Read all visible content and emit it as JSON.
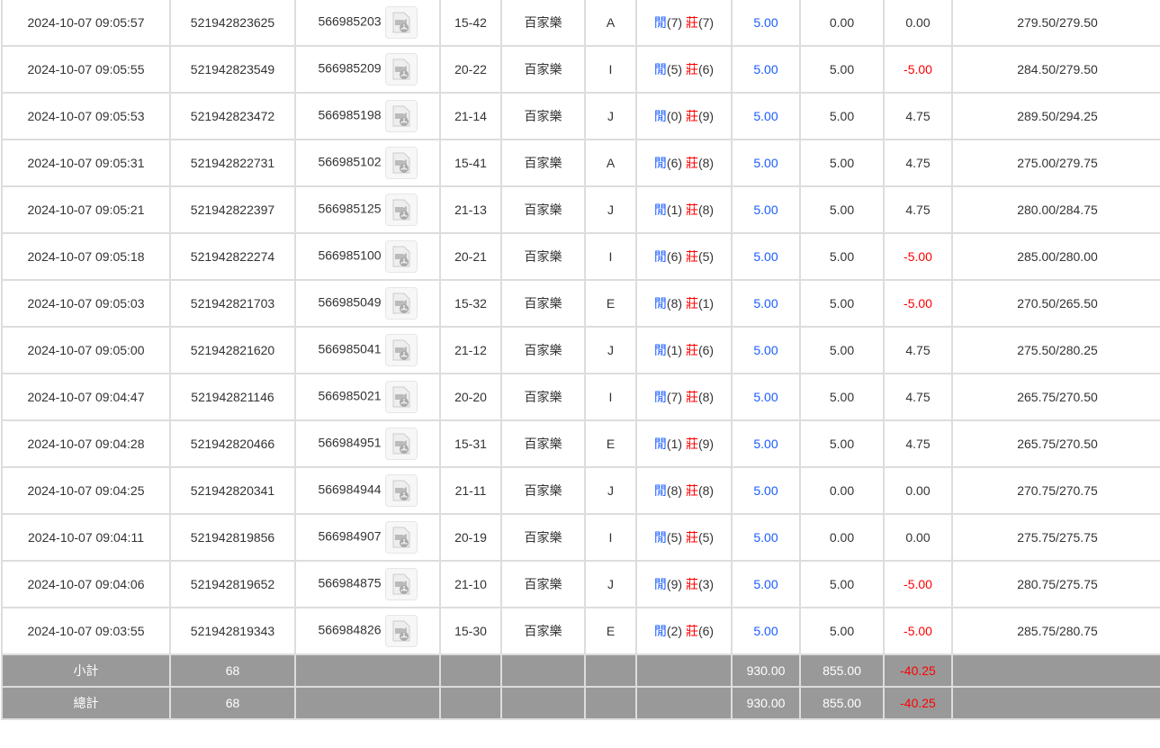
{
  "rows": [
    {
      "time": "2024-10-07 09:05:57",
      "bet_id": "521942823625",
      "round": "566985203",
      "table": "15-42",
      "game": "百家樂",
      "seat": "A",
      "player": "閒",
      "player_pts": "(7)",
      "banker": "莊",
      "banker_pts": "(7)",
      "bet": "5.00",
      "valid": "0.00",
      "win": "0.00",
      "balance": "279.50/279.50"
    },
    {
      "time": "2024-10-07 09:05:55",
      "bet_id": "521942823549",
      "round": "566985209",
      "table": "20-22",
      "game": "百家樂",
      "seat": "I",
      "player": "閒",
      "player_pts": "(5)",
      "banker": "莊",
      "banker_pts": "(6)",
      "bet": "5.00",
      "valid": "5.00",
      "win": "-5.00",
      "balance": "284.50/279.50"
    },
    {
      "time": "2024-10-07 09:05:53",
      "bet_id": "521942823472",
      "round": "566985198",
      "table": "21-14",
      "game": "百家樂",
      "seat": "J",
      "player": "閒",
      "player_pts": "(0)",
      "banker": "莊",
      "banker_pts": "(9)",
      "bet": "5.00",
      "valid": "5.00",
      "win": "4.75",
      "balance": "289.50/294.25"
    },
    {
      "time": "2024-10-07 09:05:31",
      "bet_id": "521942822731",
      "round": "566985102",
      "table": "15-41",
      "game": "百家樂",
      "seat": "A",
      "player": "閒",
      "player_pts": "(6)",
      "banker": "莊",
      "banker_pts": "(8)",
      "bet": "5.00",
      "valid": "5.00",
      "win": "4.75",
      "balance": "275.00/279.75"
    },
    {
      "time": "2024-10-07 09:05:21",
      "bet_id": "521942822397",
      "round": "566985125",
      "table": "21-13",
      "game": "百家樂",
      "seat": "J",
      "player": "閒",
      "player_pts": "(1)",
      "banker": "莊",
      "banker_pts": "(8)",
      "bet": "5.00",
      "valid": "5.00",
      "win": "4.75",
      "balance": "280.00/284.75"
    },
    {
      "time": "2024-10-07 09:05:18",
      "bet_id": "521942822274",
      "round": "566985100",
      "table": "20-21",
      "game": "百家樂",
      "seat": "I",
      "player": "閒",
      "player_pts": "(6)",
      "banker": "莊",
      "banker_pts": "(5)",
      "bet": "5.00",
      "valid": "5.00",
      "win": "-5.00",
      "balance": "285.00/280.00"
    },
    {
      "time": "2024-10-07 09:05:03",
      "bet_id": "521942821703",
      "round": "566985049",
      "table": "15-32",
      "game": "百家樂",
      "seat": "E",
      "player": "閒",
      "player_pts": "(8)",
      "banker": "莊",
      "banker_pts": "(1)",
      "bet": "5.00",
      "valid": "5.00",
      "win": "-5.00",
      "balance": "270.50/265.50"
    },
    {
      "time": "2024-10-07 09:05:00",
      "bet_id": "521942821620",
      "round": "566985041",
      "table": "21-12",
      "game": "百家樂",
      "seat": "J",
      "player": "閒",
      "player_pts": "(1)",
      "banker": "莊",
      "banker_pts": "(6)",
      "bet": "5.00",
      "valid": "5.00",
      "win": "4.75",
      "balance": "275.50/280.25"
    },
    {
      "time": "2024-10-07 09:04:47",
      "bet_id": "521942821146",
      "round": "566985021",
      "table": "20-20",
      "game": "百家樂",
      "seat": "I",
      "player": "閒",
      "player_pts": "(7)",
      "banker": "莊",
      "banker_pts": "(8)",
      "bet": "5.00",
      "valid": "5.00",
      "win": "4.75",
      "balance": "265.75/270.50"
    },
    {
      "time": "2024-10-07 09:04:28",
      "bet_id": "521942820466",
      "round": "566984951",
      "table": "15-31",
      "game": "百家樂",
      "seat": "E",
      "player": "閒",
      "player_pts": "(1)",
      "banker": "莊",
      "banker_pts": "(9)",
      "bet": "5.00",
      "valid": "5.00",
      "win": "4.75",
      "balance": "265.75/270.50"
    },
    {
      "time": "2024-10-07 09:04:25",
      "bet_id": "521942820341",
      "round": "566984944",
      "table": "21-11",
      "game": "百家樂",
      "seat": "J",
      "player": "閒",
      "player_pts": "(8)",
      "banker": "莊",
      "banker_pts": "(8)",
      "bet": "5.00",
      "valid": "0.00",
      "win": "0.00",
      "balance": "270.75/270.75"
    },
    {
      "time": "2024-10-07 09:04:11",
      "bet_id": "521942819856",
      "round": "566984907",
      "table": "20-19",
      "game": "百家樂",
      "seat": "I",
      "player": "閒",
      "player_pts": "(5)",
      "banker": "莊",
      "banker_pts": "(5)",
      "bet": "5.00",
      "valid": "0.00",
      "win": "0.00",
      "balance": "275.75/275.75"
    },
    {
      "time": "2024-10-07 09:04:06",
      "bet_id": "521942819652",
      "round": "566984875",
      "table": "21-10",
      "game": "百家樂",
      "seat": "J",
      "player": "閒",
      "player_pts": "(9)",
      "banker": "莊",
      "banker_pts": "(3)",
      "bet": "5.00",
      "valid": "5.00",
      "win": "-5.00",
      "balance": "280.75/275.75"
    },
    {
      "time": "2024-10-07 09:03:55",
      "bet_id": "521942819343",
      "round": "566984826",
      "table": "15-30",
      "game": "百家樂",
      "seat": "E",
      "player": "閒",
      "player_pts": "(2)",
      "banker": "莊",
      "banker_pts": "(6)",
      "bet": "5.00",
      "valid": "5.00",
      "win": "-5.00",
      "balance": "285.75/280.75"
    }
  ],
  "subtotal": {
    "label": "小計",
    "count": "68",
    "bet": "930.00",
    "valid": "855.00",
    "win": "-40.25"
  },
  "total": {
    "label": "總計",
    "count": "68",
    "bet": "930.00",
    "valid": "855.00",
    "win": "-40.25"
  },
  "colors": {
    "player": "#1a5cff",
    "banker": "#ff0000",
    "negative": "#ff0000",
    "summary_bg": "#999999"
  },
  "icons": {
    "replay": "video-replay-icon"
  }
}
